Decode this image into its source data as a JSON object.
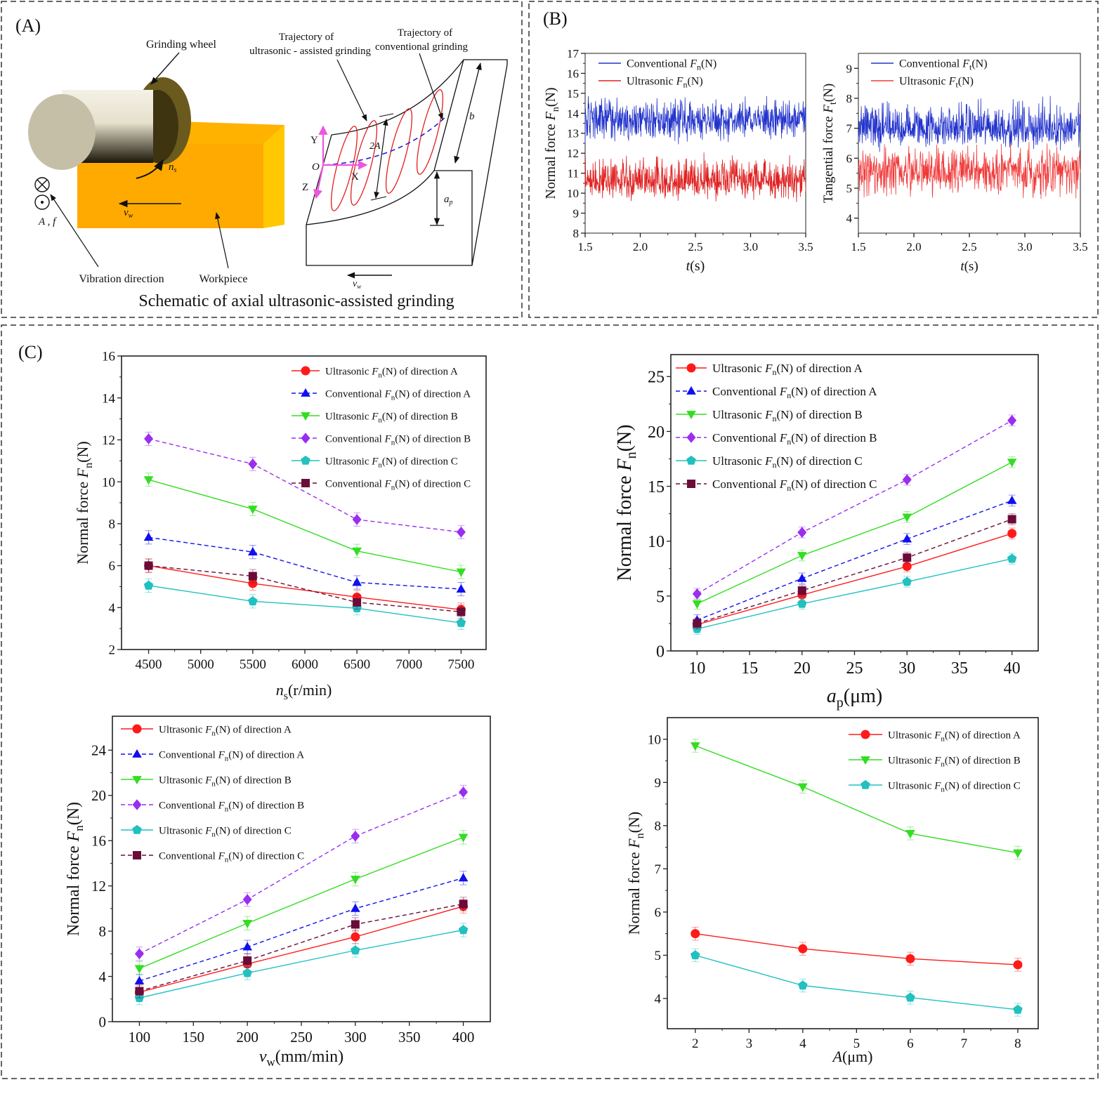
{
  "panels": {
    "A": {
      "label": "(A)",
      "grinding_wheel": "Grinding wheel",
      "traj_ultra_1": "Trajectory of",
      "traj_ultra_2": "ultrasonic - assisted grinding",
      "traj_conv_1": "Trajectory of",
      "traj_conv_2": "conventional grinding",
      "ns": {
        "sym": "n",
        "sub": "s"
      },
      "vw": {
        "sym": "v",
        "sub": "w"
      },
      "ap": {
        "sym": "a",
        "sub": "p"
      },
      "af": "A , f",
      "vibration_direction": "Vibration direction",
      "workpiece": "Workpiece",
      "axis_y": "Y",
      "axis_x": "X",
      "axis_z": "Z",
      "origin": "O",
      "amp": "2A",
      "b": "b",
      "caption": "Schematic of axial ultrasonic-assisted grinding",
      "colors": {
        "workpiece": "#ffaa00",
        "workpiece_side": "#ffc800",
        "wheel": "#6b5a1e",
        "axes": "#ee55dd",
        "ultra_traj": "#e02020",
        "conv_traj": "#2222cc"
      }
    },
    "B": {
      "label": "(B)"
    },
    "C": {
      "label": "(C)"
    }
  },
  "chart_data": [
    {
      "id": "B1",
      "type": "line",
      "xlabel": {
        "pre": "",
        "sym": "t",
        "sub": "",
        "post": "(s)"
      },
      "ylabel": {
        "pre": "Normal force ",
        "sym": "F",
        "sub": "n",
        "post": "(N)"
      },
      "xlim": [
        1.5,
        3.5
      ],
      "ylim": [
        8,
        17
      ],
      "xticks": [
        1.5,
        2.0,
        2.5,
        3.0,
        3.5
      ],
      "xtick_labels": [
        "1.5",
        "2.0",
        "2.5",
        "3.0",
        "3.5"
      ],
      "yticks": [
        8,
        9,
        10,
        11,
        12,
        13,
        14,
        15,
        16,
        17
      ],
      "ytick_labels": [
        "8",
        "9",
        "10",
        "11",
        "12",
        "13",
        "14",
        "15",
        "16",
        "17"
      ],
      "legend": "top-left",
      "series": [
        {
          "name": {
            "pre": "Conventional  ",
            "sym": "F",
            "sub": "n",
            "post": "(N)"
          },
          "color": "#2233cc",
          "style": "solid",
          "marker": "none",
          "mean": 13.7,
          "range": [
            11.9,
            15.4
          ]
        },
        {
          "name": {
            "pre": "Ultrasonic  ",
            "sym": "F",
            "sub": "n",
            "post": "(N)"
          },
          "color": "#e02020",
          "style": "solid",
          "marker": "none",
          "mean": 10.6,
          "range": [
            9.1,
            12.6
          ]
        }
      ]
    },
    {
      "id": "B2",
      "type": "line",
      "xlabel": {
        "pre": "",
        "sym": "t",
        "sub": "",
        "post": "(s)"
      },
      "ylabel": {
        "pre": "Tangential force ",
        "sym": "F",
        "sub": "t",
        "post": "(N)"
      },
      "xlim": [
        1.5,
        3.5
      ],
      "ylim": [
        3.5,
        9.5
      ],
      "xticks": [
        1.5,
        2.0,
        2.5,
        3.0,
        3.5
      ],
      "xtick_labels": [
        "1.5",
        "2.0",
        "2.5",
        "3.0",
        "3.5"
      ],
      "yticks": [
        4,
        5,
        6,
        7,
        8,
        9
      ],
      "ytick_labels": [
        "4",
        "5",
        "6",
        "7",
        "8",
        "9"
      ],
      "legend": "top-left",
      "series": [
        {
          "name": {
            "pre": "Conventional  ",
            "sym": "F",
            "sub": "t",
            "post": "(N)"
          },
          "color": "#2233cc",
          "style": "solid",
          "marker": "none",
          "mean": 7.0,
          "range": [
            5.9,
            8.5
          ]
        },
        {
          "name": {
            "pre": "Ultrasonic  ",
            "sym": "F",
            "sub": "t",
            "post": "(N)"
          },
          "color": "#f03a3a",
          "style": "solid",
          "marker": "none",
          "mean": 5.6,
          "range": [
            4.1,
            6.9
          ]
        }
      ]
    },
    {
      "id": "C1",
      "type": "line",
      "xlabel": {
        "pre": "",
        "sym": "n",
        "sub": "s",
        "post": "(r/min)"
      },
      "ylabel": {
        "pre": "Normal force ",
        "sym": "F",
        "sub": "n",
        "post": "(N)"
      },
      "x": [
        4500,
        5500,
        6500,
        7500
      ],
      "xlim": [
        4240,
        7740
      ],
      "ylim": [
        2,
        16
      ],
      "xticks": [
        4500,
        5000,
        5500,
        6000,
        6500,
        7000,
        7500
      ],
      "xtick_labels": [
        "4500",
        "5000",
        "5500",
        "6000",
        "6500",
        "7000",
        "7500"
      ],
      "yticks": [
        2,
        4,
        6,
        8,
        10,
        12,
        14,
        16
      ],
      "ytick_labels": [
        "2",
        "4",
        "6",
        "8",
        "10",
        "12",
        "14",
        "16"
      ],
      "legend": "top-right",
      "error": 0.32,
      "series": [
        {
          "name": {
            "pre": "Ultrasonic ",
            "sym": "F",
            "sub": "n",
            "post": "(N) of direction A"
          },
          "color": "#ff1a1a",
          "style": "solid",
          "marker": "circle",
          "values": [
            6.0,
            5.15,
            4.5,
            3.9
          ]
        },
        {
          "name": {
            "pre": "Conventional ",
            "sym": "F",
            "sub": "n",
            "post": "(N) of direction A"
          },
          "color": "#1010ee",
          "style": "dashed",
          "marker": "triangle-up",
          "values": [
            7.35,
            6.65,
            5.2,
            4.88
          ]
        },
        {
          "name": {
            "pre": "Ultrasonic ",
            "sym": "F",
            "sub": "n",
            "post": "(N) of direction B"
          },
          "color": "#33dd22",
          "style": "solid",
          "marker": "triangle-down",
          "values": [
            10.1,
            8.7,
            6.7,
            5.7
          ]
        },
        {
          "name": {
            "pre": "Conventional ",
            "sym": "F",
            "sub": "n",
            "post": "(N) of direction B"
          },
          "color": "#9a2ef0",
          "style": "dashed",
          "marker": "diamond",
          "values": [
            12.05,
            10.85,
            8.2,
            7.6
          ]
        },
        {
          "name": {
            "pre": "Ultrasonic ",
            "sym": "F",
            "sub": "n",
            "post": "(N) of direction C"
          },
          "color": "#22c0c0",
          "style": "solid",
          "marker": "pentagon",
          "values": [
            5.05,
            4.3,
            3.97,
            3.27
          ]
        },
        {
          "name": {
            "pre": "Conventional ",
            "sym": "F",
            "sub": "n",
            "post": "(N) of direction C"
          },
          "color": "#6a0c38",
          "style": "dashed",
          "marker": "square",
          "values": [
            6.0,
            5.5,
            4.25,
            3.8
          ]
        }
      ]
    },
    {
      "id": "C2",
      "type": "line",
      "xlabel": {
        "pre": "",
        "sym": "a",
        "sub": "p",
        "post": "(μm)"
      },
      "ylabel": {
        "pre": "Normal force ",
        "sym": "F",
        "sub": "n",
        "post": "(N)"
      },
      "x": [
        10,
        20,
        30,
        40
      ],
      "xlim": [
        7.5,
        42.5
      ],
      "ylim": [
        0,
        27
      ],
      "xticks": [
        10,
        15,
        20,
        25,
        30,
        35,
        40
      ],
      "xtick_labels": [
        "10",
        "15",
        "20",
        "25",
        "30",
        "35",
        "40"
      ],
      "yticks": [
        0,
        5,
        10,
        15,
        20,
        25
      ],
      "ytick_labels": [
        "0",
        "5",
        "10",
        "15",
        "20",
        "25"
      ],
      "legend": "top-left",
      "error": 0.5,
      "series": [
        {
          "name": {
            "pre": "Ultrasonic ",
            "sym": "F",
            "sub": "n",
            "post": "(N) of direction A"
          },
          "color": "#ff1a1a",
          "style": "solid",
          "marker": "circle",
          "values": [
            2.4,
            5.1,
            7.7,
            10.7
          ]
        },
        {
          "name": {
            "pre": "Conventional ",
            "sym": "F",
            "sub": "n",
            "post": "(N) of direction A"
          },
          "color": "#1010ee",
          "style": "dashed",
          "marker": "triangle-up",
          "values": [
            2.8,
            6.6,
            10.2,
            13.7
          ]
        },
        {
          "name": {
            "pre": "Ultrasonic ",
            "sym": "F",
            "sub": "n",
            "post": "(N) of direction B"
          },
          "color": "#33dd22",
          "style": "solid",
          "marker": "triangle-down",
          "values": [
            4.3,
            8.7,
            12.2,
            17.2
          ]
        },
        {
          "name": {
            "pre": "Conventional ",
            "sym": "F",
            "sub": "n",
            "post": "(N) of direction B"
          },
          "color": "#9a2ef0",
          "style": "dashed",
          "marker": "diamond",
          "values": [
            5.2,
            10.8,
            15.6,
            21.0
          ]
        },
        {
          "name": {
            "pre": "Ultrasonic ",
            "sym": "F",
            "sub": "n",
            "post": "(N) of direction C"
          },
          "color": "#22c0c0",
          "style": "solid",
          "marker": "pentagon",
          "values": [
            2.0,
            4.3,
            6.3,
            8.4
          ]
        },
        {
          "name": {
            "pre": "Conventional ",
            "sym": "F",
            "sub": "n",
            "post": "(N) of direction C"
          },
          "color": "#6a0c38",
          "style": "dashed",
          "marker": "square",
          "values": [
            2.5,
            5.5,
            8.5,
            12.0
          ]
        }
      ]
    },
    {
      "id": "C3",
      "type": "line",
      "xlabel": {
        "pre": "",
        "sym": "v",
        "sub": "w",
        "post": "(mm/min)"
      },
      "ylabel": {
        "pre": "Normal force ",
        "sym": "F",
        "sub": "n",
        "post": "(N)"
      },
      "x": [
        100,
        200,
        300,
        400
      ],
      "xlim": [
        75,
        425
      ],
      "ylim": [
        0,
        27
      ],
      "xticks": [
        100,
        150,
        200,
        250,
        300,
        350,
        400
      ],
      "xtick_labels": [
        "100",
        "150",
        "200",
        "250",
        "300",
        "350",
        "400"
      ],
      "yticks": [
        0,
        4,
        8,
        12,
        16,
        20,
        24
      ],
      "ytick_labels": [
        "0",
        "4",
        "8",
        "12",
        "16",
        "20",
        "24"
      ],
      "legend": "top-left",
      "error": 0.6,
      "series": [
        {
          "name": {
            "pre": "Ultrasonic ",
            "sym": "F",
            "sub": "n",
            "post": "(N) of direction A"
          },
          "color": "#ff1a1a",
          "style": "solid",
          "marker": "circle",
          "values": [
            2.6,
            5.1,
            7.5,
            10.2
          ]
        },
        {
          "name": {
            "pre": "Conventional ",
            "sym": "F",
            "sub": "n",
            "post": "(N) of direction A"
          },
          "color": "#1010ee",
          "style": "dashed",
          "marker": "triangle-up",
          "values": [
            3.6,
            6.6,
            10.0,
            12.7
          ]
        },
        {
          "name": {
            "pre": "Ultrasonic ",
            "sym": "F",
            "sub": "n",
            "post": "(N) of direction B"
          },
          "color": "#33dd22",
          "style": "solid",
          "marker": "triangle-down",
          "values": [
            4.7,
            8.7,
            12.6,
            16.3
          ]
        },
        {
          "name": {
            "pre": "Conventional ",
            "sym": "F",
            "sub": "n",
            "post": "(N) of direction B"
          },
          "color": "#9a2ef0",
          "style": "dashed",
          "marker": "diamond",
          "values": [
            6.0,
            10.8,
            16.4,
            20.3
          ]
        },
        {
          "name": {
            "pre": "Ultrasonic ",
            "sym": "F",
            "sub": "n",
            "post": "(N) of direction C"
          },
          "color": "#22c0c0",
          "style": "solid",
          "marker": "pentagon",
          "values": [
            2.1,
            4.3,
            6.3,
            8.1
          ]
        },
        {
          "name": {
            "pre": "Conventional ",
            "sym": "F",
            "sub": "n",
            "post": "(N) of direction C"
          },
          "color": "#6a0c38",
          "style": "dashed",
          "marker": "square",
          "values": [
            2.7,
            5.4,
            8.6,
            10.4
          ]
        }
      ]
    },
    {
      "id": "C4",
      "type": "line",
      "xlabel": {
        "pre": "",
        "sym": "A",
        "sub": "",
        "post": "(μm)"
      },
      "ylabel": {
        "pre": "Normal force ",
        "sym": "F",
        "sub": "n",
        "post": "(N)"
      },
      "x": [
        2,
        4,
        6,
        8
      ],
      "xlim": [
        1.48,
        8.38
      ],
      "ylim": [
        3.3,
        10.5
      ],
      "xticks": [
        2,
        3,
        4,
        5,
        6,
        7,
        8
      ],
      "xtick_labels": [
        "2",
        "3",
        "4",
        "5",
        "6",
        "7",
        "8"
      ],
      "yticks": [
        4,
        5,
        6,
        7,
        8,
        9,
        10
      ],
      "ytick_labels": [
        "4",
        "5",
        "6",
        "7",
        "8",
        "9",
        "10"
      ],
      "legend": "top-right",
      "error": 0.15,
      "series": [
        {
          "name": {
            "pre": "Ultrasonic ",
            "sym": "F",
            "sub": "n",
            "post": "(N) of direction A"
          },
          "color": "#ff1a1a",
          "style": "solid",
          "marker": "circle",
          "values": [
            5.5,
            5.15,
            4.92,
            4.78
          ]
        },
        {
          "name": {
            "pre": "Ultrasonic ",
            "sym": "F",
            "sub": "n",
            "post": "(N) of direction B"
          },
          "color": "#33dd22",
          "style": "solid",
          "marker": "triangle-down",
          "values": [
            9.85,
            8.9,
            7.82,
            7.37
          ]
        },
        {
          "name": {
            "pre": "Ultrasonic ",
            "sym": "F",
            "sub": "n",
            "post": "(N) of direction C"
          },
          "color": "#22c0c0",
          "style": "solid",
          "marker": "pentagon",
          "values": [
            5.0,
            4.3,
            4.02,
            3.74
          ]
        }
      ]
    }
  ]
}
